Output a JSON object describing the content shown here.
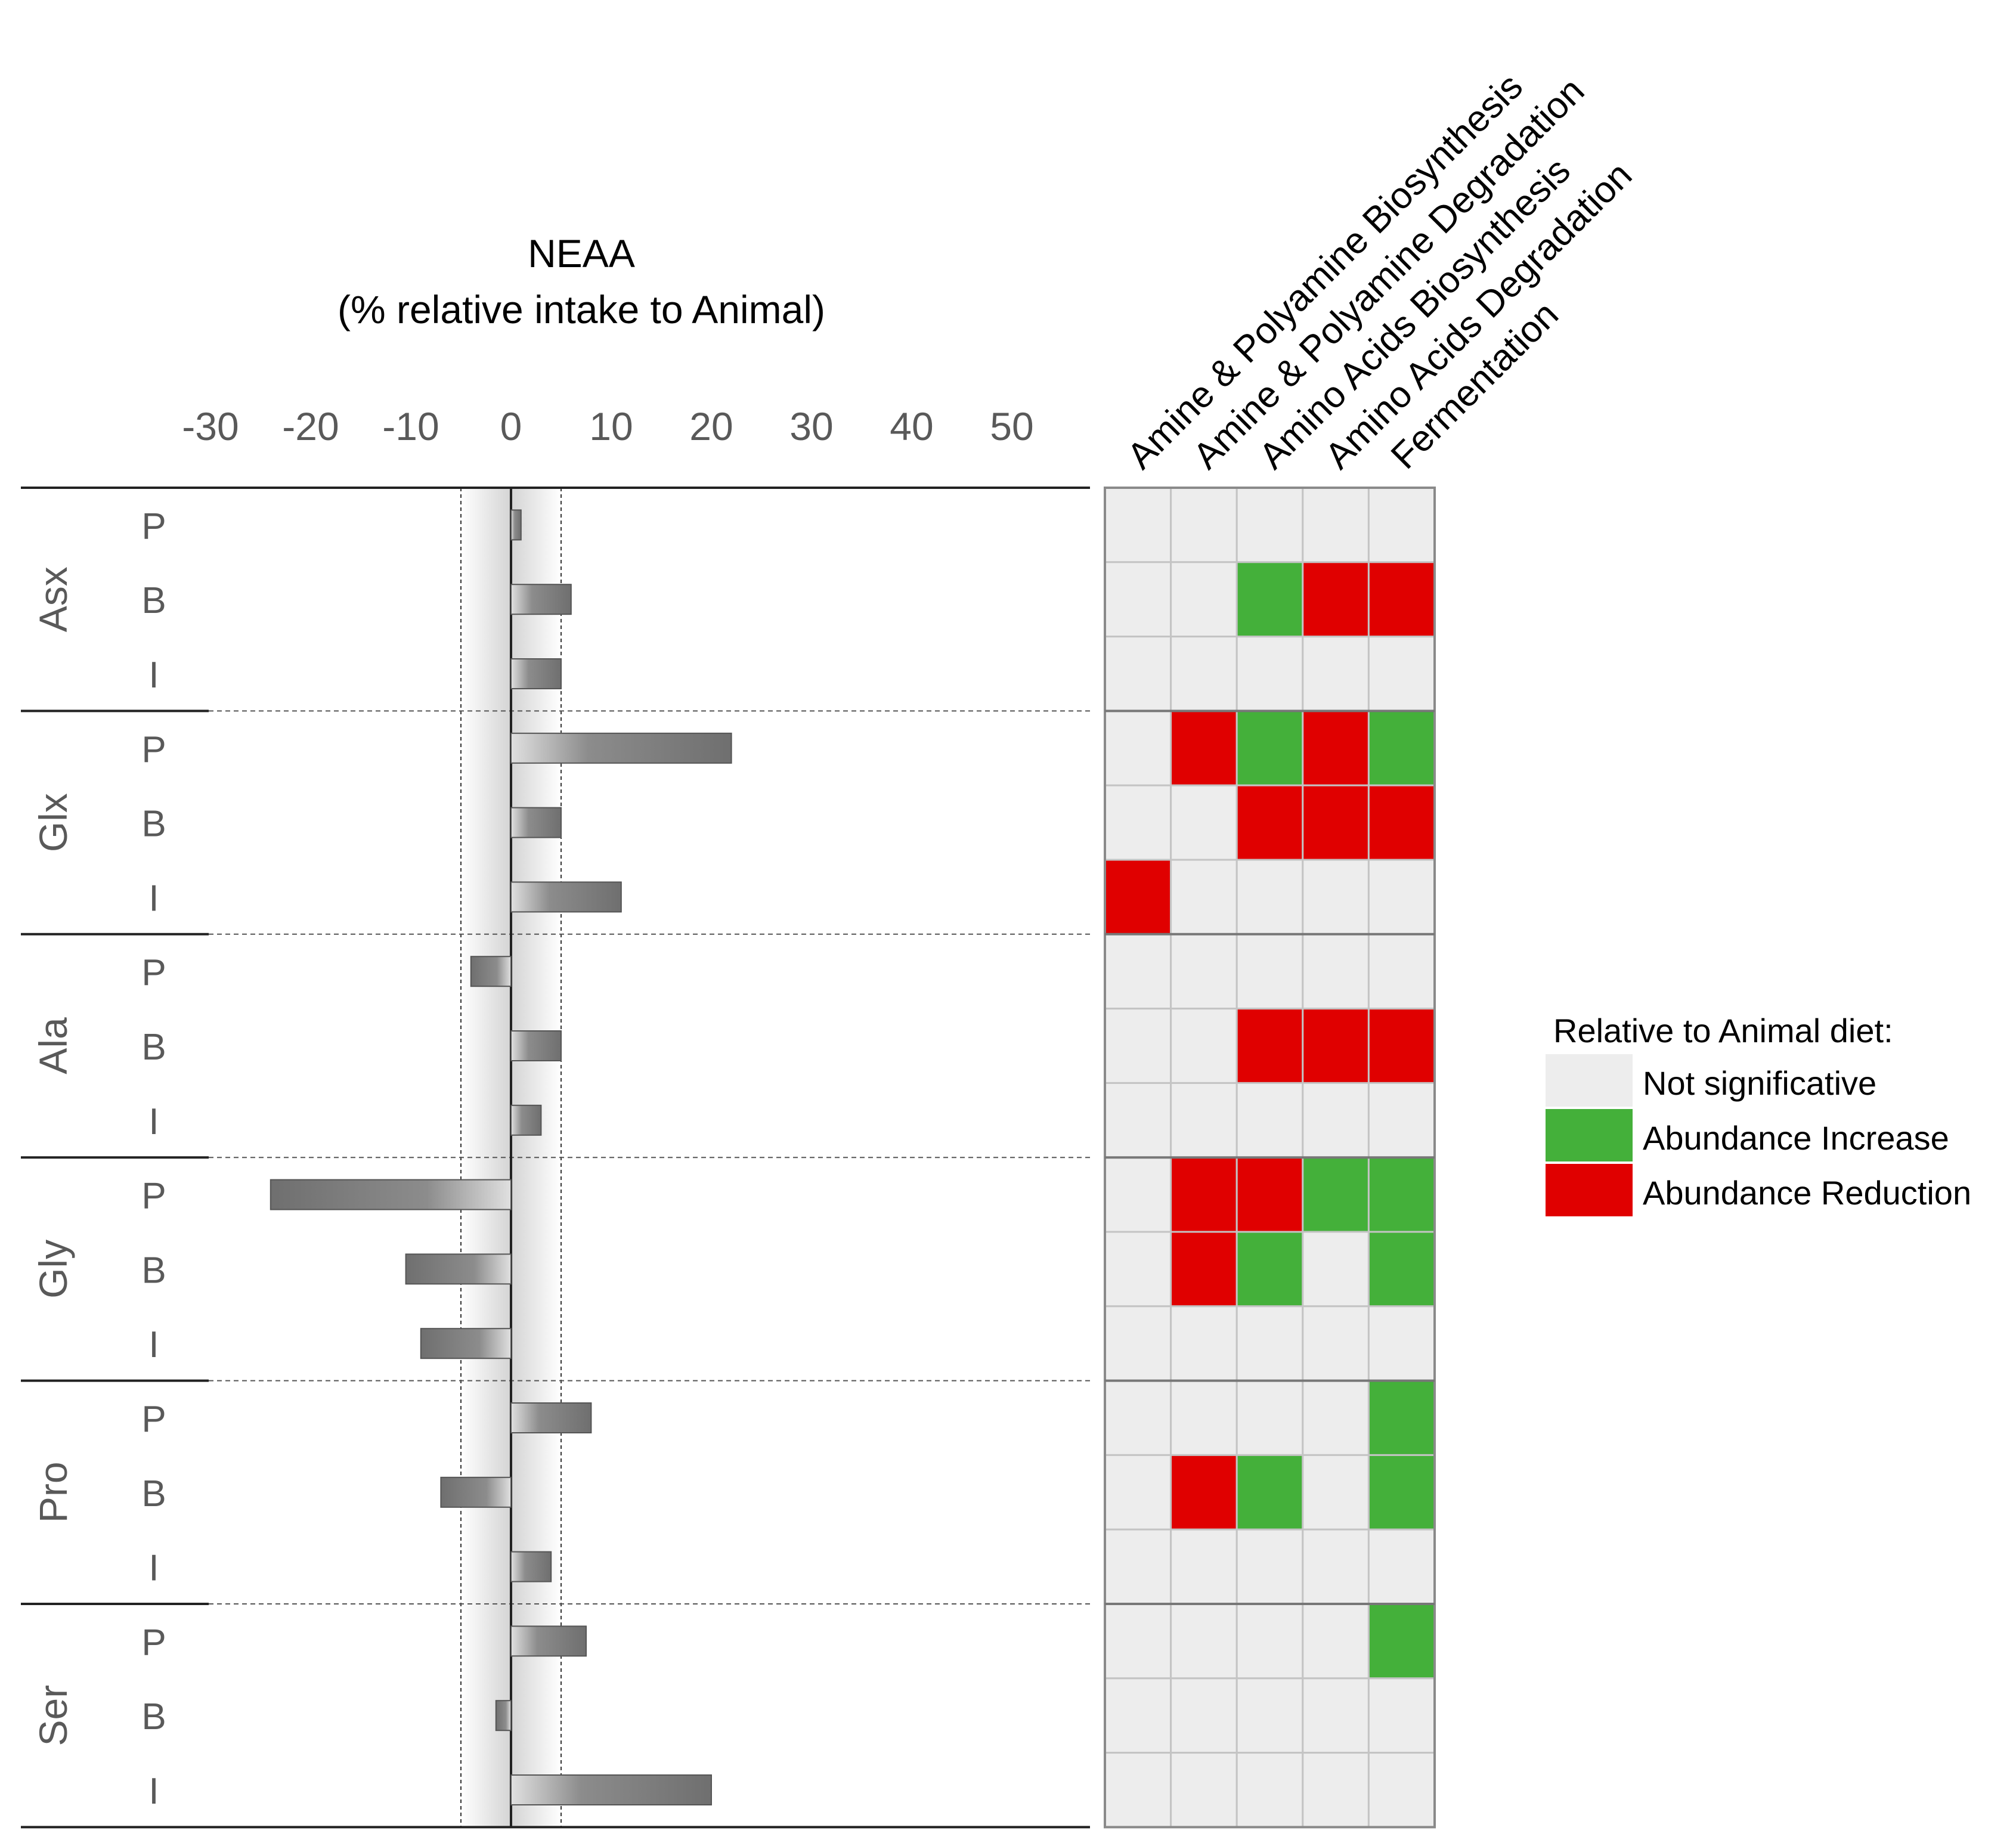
{
  "chart_data": [
    {
      "type": "bar",
      "orientation": "horizontal",
      "title": "NEAA",
      "subtitle": "(% relative intake to Animal)",
      "xlim": [
        -30,
        55
      ],
      "xticks": [
        -30,
        -20,
        -10,
        0,
        10,
        20,
        30,
        40,
        50
      ],
      "xtick_labels": [
        "-30",
        "-20",
        "-10",
        "0",
        "10",
        "20",
        "30",
        "40",
        "50"
      ],
      "shaded_band": [
        -5,
        5
      ],
      "groups": [
        "Asx",
        "Glx",
        "Ala",
        "Gly",
        "Pro",
        "Ser"
      ],
      "sublabels": [
        "P",
        "B",
        "I"
      ],
      "values": [
        [
          1,
          6,
          5
        ],
        [
          22,
          5,
          11
        ],
        [
          -4,
          5,
          3
        ],
        [
          -24,
          -10.5,
          -9
        ],
        [
          8,
          -7,
          4
        ],
        [
          7.5,
          -1.5,
          20
        ]
      ]
    },
    {
      "type": "heatmap",
      "columns": [
        "Amine & Polyamine Biosynthesis",
        "Amine & Polyamine Degradation",
        "Amino Acids Biosynthesis",
        "Amino Acids Degradation",
        "Fermentation"
      ],
      "row_groups": [
        "Asx",
        "Glx",
        "Ala",
        "Gly",
        "Pro",
        "Ser"
      ],
      "row_sublabels": [
        "P",
        "B",
        "I"
      ],
      "codes": {
        "N": "Not significative",
        "G": "Abundance Increase",
        "R": "Abundance Reduction"
      },
      "cells": [
        [
          "N",
          "N",
          "N",
          "N",
          "N"
        ],
        [
          "N",
          "N",
          "G",
          "R",
          "R"
        ],
        [
          "N",
          "N",
          "N",
          "N",
          "N"
        ],
        [
          "N",
          "R",
          "G",
          "R",
          "G"
        ],
        [
          "N",
          "N",
          "R",
          "R",
          "R"
        ],
        [
          "R",
          "N",
          "N",
          "N",
          "N"
        ],
        [
          "N",
          "N",
          "N",
          "N",
          "N"
        ],
        [
          "N",
          "N",
          "R",
          "R",
          "R"
        ],
        [
          "N",
          "N",
          "N",
          "N",
          "N"
        ],
        [
          "N",
          "R",
          "R",
          "G",
          "G"
        ],
        [
          "N",
          "R",
          "G",
          "N",
          "G"
        ],
        [
          "N",
          "N",
          "N",
          "N",
          "N"
        ],
        [
          "N",
          "N",
          "N",
          "N",
          "G"
        ],
        [
          "N",
          "R",
          "G",
          "N",
          "G"
        ],
        [
          "N",
          "N",
          "N",
          "N",
          "N"
        ],
        [
          "N",
          "N",
          "N",
          "N",
          "G"
        ],
        [
          "N",
          "N",
          "N",
          "N",
          "N"
        ],
        [
          "N",
          "N",
          "N",
          "N",
          "N"
        ]
      ]
    }
  ],
  "legend": {
    "title": "Relative to Animal diet:",
    "items": [
      {
        "label": "Not significative",
        "color": "#ededed"
      },
      {
        "label": "Abundance Increase",
        "color": "#44b03a"
      },
      {
        "label": "Abundance Reduction",
        "color": "#e00000"
      }
    ]
  },
  "colors": {
    "bar_dark": "#6f6f6f",
    "bar_light": "#e0e0e0",
    "neutral": "#ededed",
    "increase": "#44b03a",
    "reduction": "#e00000",
    "grid_line": "#c4c4c4",
    "tick_text": "#595959"
  }
}
